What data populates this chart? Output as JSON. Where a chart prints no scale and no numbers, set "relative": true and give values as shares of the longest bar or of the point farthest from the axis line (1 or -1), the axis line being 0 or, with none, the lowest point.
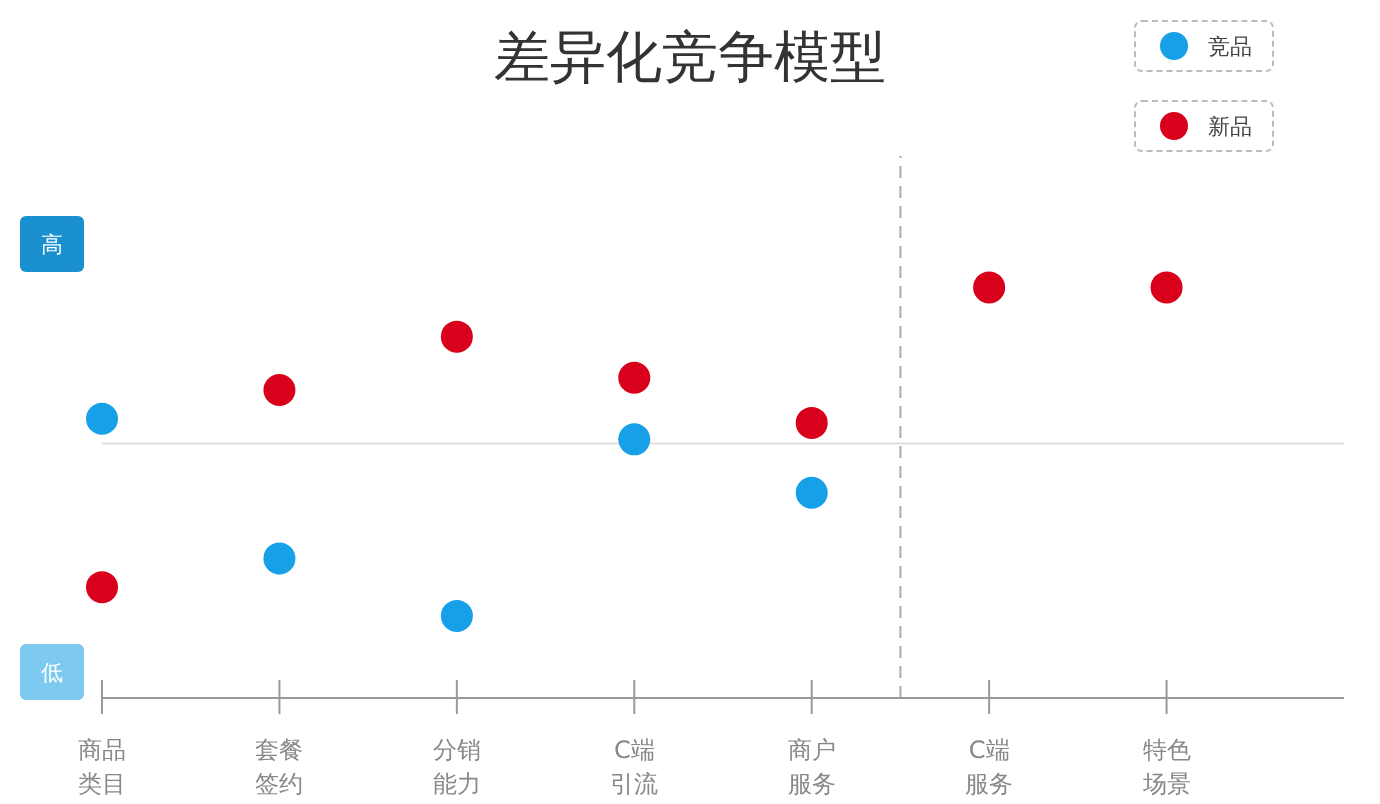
{
  "chart_data": {
    "type": "scatter",
    "title": "差异化竞争模型",
    "relative": true,
    "categories": [
      "商品类目",
      "套餐签约",
      "分销能力",
      "C端引流",
      "商户服务",
      "C端服务",
      "特色场景"
    ],
    "series": [
      {
        "name": "竞品",
        "color": "#16a0e8",
        "values": [
          0.68,
          0.34,
          0.2,
          0.63,
          0.5,
          null,
          null
        ]
      },
      {
        "name": "新品",
        "color": "#d9001b",
        "values": [
          0.27,
          0.75,
          0.88,
          0.78,
          0.67,
          1,
          1
        ]
      }
    ],
    "ref_lines": [
      {
        "axis": "y",
        "value": 0.62,
        "color": "#dddddd"
      }
    ],
    "annotations": [
      "高",
      "低"
    ],
    "legend": "top right",
    "marker": "circle"
  }
}
